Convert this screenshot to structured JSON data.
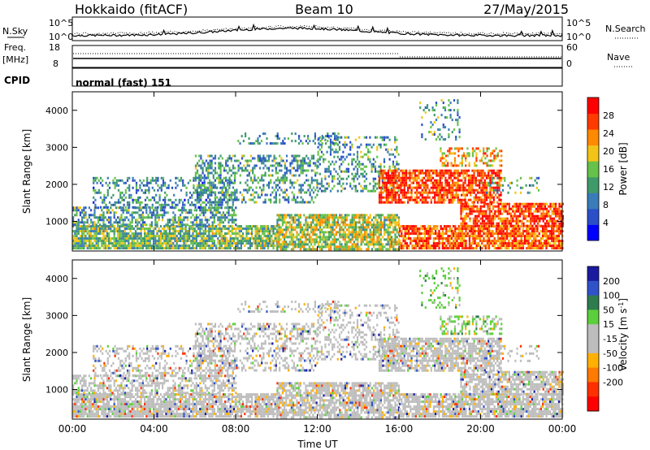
{
  "header": {
    "station": "Hokkaido (fitACF)",
    "beam": "Beam 10",
    "date": "27/May/2015"
  },
  "noise_panel": {
    "left_label": "N.Sky",
    "right_label": "N.Search",
    "ticks": [
      "10^5",
      "10^0"
    ]
  },
  "freq_panel": {
    "left_label_1": "Freq.",
    "left_label_2": "[MHz]",
    "left_ticks": [
      "18",
      "8"
    ],
    "right_label": "Nave",
    "right_ticks": [
      "60",
      "0"
    ]
  },
  "cpid_panel": {
    "label": "CPID",
    "value": "normal (fast) 151"
  },
  "colors": {
    "power_scale": [
      "#0000ff",
      "#2a4fc9",
      "#3a7bb8",
      "#3f9a6a",
      "#66c24a",
      "#f2c418",
      "#ff8a00",
      "#ff3a00",
      "#ff0000"
    ],
    "velocity_scale": [
      "#1a1aa0",
      "#2f52c9",
      "#2e7c4e",
      "#5ccf3c",
      "#bdbdbd",
      "#bdbdbd",
      "#ffb000",
      "#ff7a00",
      "#ff3000",
      "#ff0000"
    ]
  },
  "chart_data": [
    {
      "type": "heatmap",
      "name": "power",
      "ylabel": "Slant Range [km]",
      "y_ticks": [
        "1000",
        "2000",
        "3000",
        "4000"
      ],
      "ylim": [
        200,
        4500
      ],
      "x_ticks": [
        "00:00",
        "04:00",
        "08:00",
        "12:00",
        "16:00",
        "20:00",
        "00:00"
      ],
      "colorbar_label": "Power [dB]",
      "colorbar_ticks": [
        "4",
        "8",
        "12",
        "16",
        "20",
        "24",
        "28"
      ],
      "colorbar_range": [
        0,
        32
      ]
    },
    {
      "type": "heatmap",
      "name": "velocity",
      "ylabel": "Slant Range [km]",
      "y_ticks": [
        "1000",
        "2000",
        "3000",
        "4000"
      ],
      "ylim": [
        200,
        4500
      ],
      "x_ticks": [
        "00:00",
        "04:00",
        "08:00",
        "12:00",
        "16:00",
        "20:00",
        "00:00"
      ],
      "xlabel": "Time UT",
      "colorbar_label": "Velocity [m s",
      "colorbar_unit_sup": "-1",
      "colorbar_ticks": [
        "200",
        "100",
        "50",
        "15",
        "-15",
        "-50",
        "-100",
        "-200"
      ]
    }
  ]
}
